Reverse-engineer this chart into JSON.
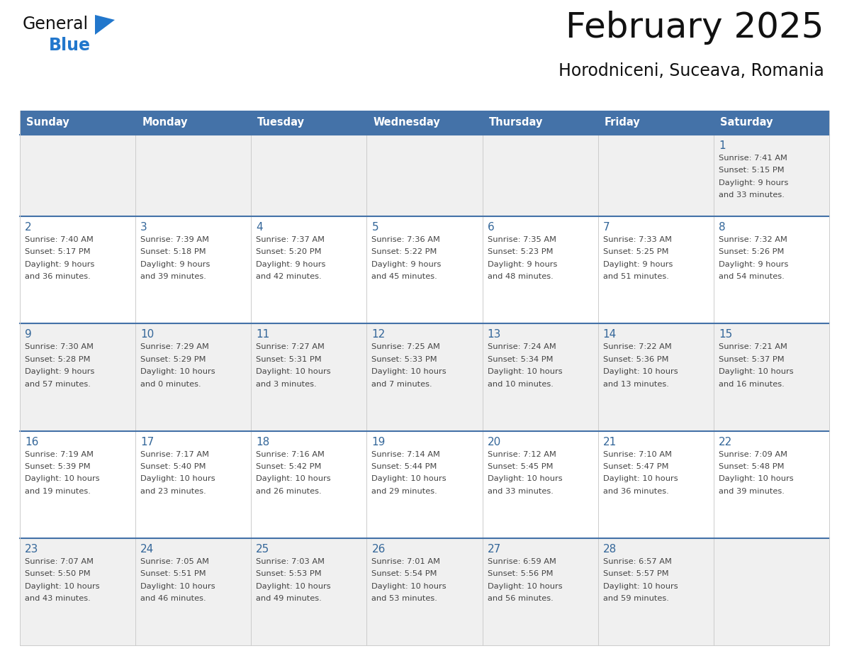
{
  "title": "February 2025",
  "subtitle": "Horodniceni, Suceava, Romania",
  "header_bg": "#4472a8",
  "header_text": "#ffffff",
  "cell_bg_odd": "#f0f0f0",
  "cell_bg_even": "#ffffff",
  "row_separator_color": "#4472a8",
  "col_separator_color": "#cccccc",
  "day_number_color": "#336699",
  "text_color": "#444444",
  "days_of_week": [
    "Sunday",
    "Monday",
    "Tuesday",
    "Wednesday",
    "Thursday",
    "Friday",
    "Saturday"
  ],
  "calendar_data": [
    [
      null,
      null,
      null,
      null,
      null,
      null,
      {
        "day": 1,
        "sunrise": "7:41 AM",
        "sunset": "5:15 PM",
        "daylight": "9 hours",
        "daylight2": "and 33 minutes."
      }
    ],
    [
      {
        "day": 2,
        "sunrise": "7:40 AM",
        "sunset": "5:17 PM",
        "daylight": "9 hours",
        "daylight2": "and 36 minutes."
      },
      {
        "day": 3,
        "sunrise": "7:39 AM",
        "sunset": "5:18 PM",
        "daylight": "9 hours",
        "daylight2": "and 39 minutes."
      },
      {
        "day": 4,
        "sunrise": "7:37 AM",
        "sunset": "5:20 PM",
        "daylight": "9 hours",
        "daylight2": "and 42 minutes."
      },
      {
        "day": 5,
        "sunrise": "7:36 AM",
        "sunset": "5:22 PM",
        "daylight": "9 hours",
        "daylight2": "and 45 minutes."
      },
      {
        "day": 6,
        "sunrise": "7:35 AM",
        "sunset": "5:23 PM",
        "daylight": "9 hours",
        "daylight2": "and 48 minutes."
      },
      {
        "day": 7,
        "sunrise": "7:33 AM",
        "sunset": "5:25 PM",
        "daylight": "9 hours",
        "daylight2": "and 51 minutes."
      },
      {
        "day": 8,
        "sunrise": "7:32 AM",
        "sunset": "5:26 PM",
        "daylight": "9 hours",
        "daylight2": "and 54 minutes."
      }
    ],
    [
      {
        "day": 9,
        "sunrise": "7:30 AM",
        "sunset": "5:28 PM",
        "daylight": "9 hours",
        "daylight2": "and 57 minutes."
      },
      {
        "day": 10,
        "sunrise": "7:29 AM",
        "sunset": "5:29 PM",
        "daylight": "10 hours",
        "daylight2": "and 0 minutes."
      },
      {
        "day": 11,
        "sunrise": "7:27 AM",
        "sunset": "5:31 PM",
        "daylight": "10 hours",
        "daylight2": "and 3 minutes."
      },
      {
        "day": 12,
        "sunrise": "7:25 AM",
        "sunset": "5:33 PM",
        "daylight": "10 hours",
        "daylight2": "and 7 minutes."
      },
      {
        "day": 13,
        "sunrise": "7:24 AM",
        "sunset": "5:34 PM",
        "daylight": "10 hours",
        "daylight2": "and 10 minutes."
      },
      {
        "day": 14,
        "sunrise": "7:22 AM",
        "sunset": "5:36 PM",
        "daylight": "10 hours",
        "daylight2": "and 13 minutes."
      },
      {
        "day": 15,
        "sunrise": "7:21 AM",
        "sunset": "5:37 PM",
        "daylight": "10 hours",
        "daylight2": "and 16 minutes."
      }
    ],
    [
      {
        "day": 16,
        "sunrise": "7:19 AM",
        "sunset": "5:39 PM",
        "daylight": "10 hours",
        "daylight2": "and 19 minutes."
      },
      {
        "day": 17,
        "sunrise": "7:17 AM",
        "sunset": "5:40 PM",
        "daylight": "10 hours",
        "daylight2": "and 23 minutes."
      },
      {
        "day": 18,
        "sunrise": "7:16 AM",
        "sunset": "5:42 PM",
        "daylight": "10 hours",
        "daylight2": "and 26 minutes."
      },
      {
        "day": 19,
        "sunrise": "7:14 AM",
        "sunset": "5:44 PM",
        "daylight": "10 hours",
        "daylight2": "and 29 minutes."
      },
      {
        "day": 20,
        "sunrise": "7:12 AM",
        "sunset": "5:45 PM",
        "daylight": "10 hours",
        "daylight2": "and 33 minutes."
      },
      {
        "day": 21,
        "sunrise": "7:10 AM",
        "sunset": "5:47 PM",
        "daylight": "10 hours",
        "daylight2": "and 36 minutes."
      },
      {
        "day": 22,
        "sunrise": "7:09 AM",
        "sunset": "5:48 PM",
        "daylight": "10 hours",
        "daylight2": "and 39 minutes."
      }
    ],
    [
      {
        "day": 23,
        "sunrise": "7:07 AM",
        "sunset": "5:50 PM",
        "daylight": "10 hours",
        "daylight2": "and 43 minutes."
      },
      {
        "day": 24,
        "sunrise": "7:05 AM",
        "sunset": "5:51 PM",
        "daylight": "10 hours",
        "daylight2": "and 46 minutes."
      },
      {
        "day": 25,
        "sunrise": "7:03 AM",
        "sunset": "5:53 PM",
        "daylight": "10 hours",
        "daylight2": "and 49 minutes."
      },
      {
        "day": 26,
        "sunrise": "7:01 AM",
        "sunset": "5:54 PM",
        "daylight": "10 hours",
        "daylight2": "and 53 minutes."
      },
      {
        "day": 27,
        "sunrise": "6:59 AM",
        "sunset": "5:56 PM",
        "daylight": "10 hours",
        "daylight2": "and 56 minutes."
      },
      {
        "day": 28,
        "sunrise": "6:57 AM",
        "sunset": "5:57 PM",
        "daylight": "10 hours",
        "daylight2": "and 59 minutes."
      },
      null
    ]
  ],
  "logo_general_color": "#111111",
  "logo_blue_color": "#2277cc",
  "logo_triangle_color": "#2277cc"
}
